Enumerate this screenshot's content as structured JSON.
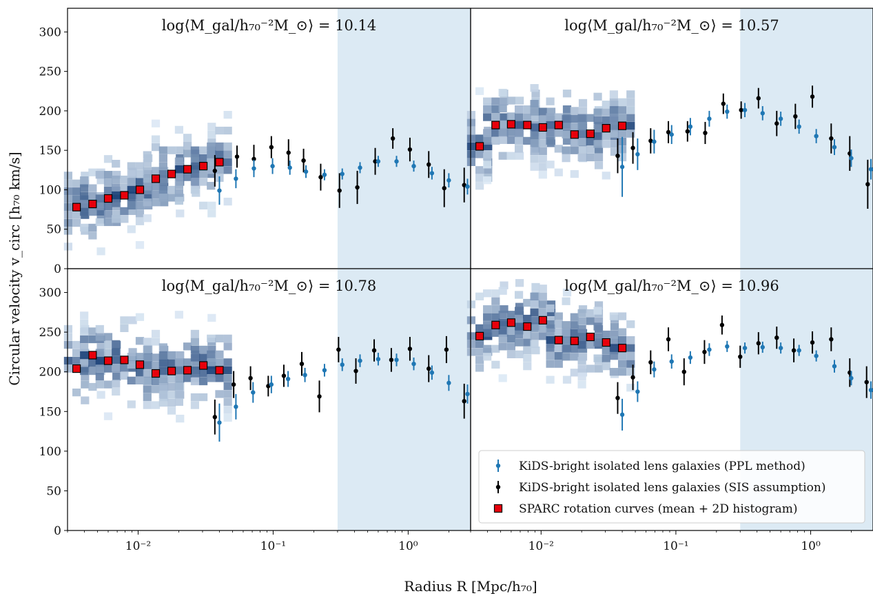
{
  "figure": {
    "ylabel": "Circular velocity v_circ [h₇₀ km/s]",
    "xlabel": "Radius R [Mpc/h₇₀]",
    "x_tick_labels": [
      "10⁻²",
      "10⁻¹",
      "10⁰"
    ],
    "y_tick_labels": [
      "0",
      "50",
      "100",
      "150",
      "200",
      "250",
      "300"
    ]
  },
  "legend": {
    "placement": "lower-right of bottom-right panel",
    "entries": [
      {
        "label": "KiDS-bright isolated lens galaxies (PPL method)",
        "color": "#1f77b4",
        "marker": "point-errorbar"
      },
      {
        "label": "KiDS-bright isolated lens galaxies (SIS assumption)",
        "color": "#000000",
        "marker": "point-errorbar"
      },
      {
        "label": "SPARC rotation curves (mean + 2D histogram)",
        "color": "#e8000b",
        "marker": "square"
      }
    ]
  },
  "colors": {
    "ppl": "#1f77b4",
    "sis": "#000000",
    "sparc_fill": "#e8000b",
    "shade": "#dceaf4",
    "hist_light": "#deebf7",
    "hist_dark": "#08306b"
  },
  "chart_data": [
    {
      "type": "scatter",
      "title": "log⟨M_gal/h₇₀⁻²M_⊙⟩ = 10.14",
      "xscale": "log",
      "xlim": [
        0.003,
        2.9
      ],
      "ylim": [
        0,
        330
      ],
      "shaded_x_range": [
        0.3,
        2.9
      ],
      "series": [
        {
          "name": "KiDS-bright isolated lens galaxies (SIS assumption)",
          "x": [
            0.037,
            0.054,
            0.072,
            0.097,
            0.13,
            0.168,
            0.225,
            0.31,
            0.42,
            0.57,
            0.77,
            1.03,
            1.42,
            1.85,
            2.6
          ],
          "y": [
            124,
            142,
            139,
            154,
            147,
            137,
            116,
            99,
            103,
            136,
            165,
            151,
            132,
            102,
            106
          ],
          "err": [
            20,
            14,
            18,
            14,
            17,
            15,
            17,
            22,
            21,
            17,
            13,
            15,
            17,
            24,
            22
          ]
        },
        {
          "name": "KiDS-bright isolated lens galaxies (PPL method)",
          "x": [
            0.04,
            0.053,
            0.072,
            0.099,
            0.133,
            0.175,
            0.24,
            0.325,
            0.44,
            0.6,
            0.82,
            1.1,
            1.5,
            2.0,
            2.75
          ],
          "y": [
            99,
            114,
            127,
            130,
            128,
            123,
            119,
            120,
            128,
            136,
            136,
            130,
            121,
            112,
            104
          ],
          "err": [
            18,
            12,
            11,
            10,
            9,
            8,
            7,
            7,
            7,
            7,
            7,
            7,
            8,
            9,
            10
          ]
        },
        {
          "name": "SPARC rotation curves (mean + 2D histogram)",
          "x": [
            0.0035,
            0.0046,
            0.006,
            0.0079,
            0.0103,
            0.0135,
            0.0177,
            0.0232,
            0.0304,
            0.04
          ],
          "y": [
            78,
            82,
            89,
            93,
            100,
            114,
            120,
            126,
            130,
            135
          ]
        }
      ]
    },
    {
      "type": "scatter",
      "title": "log⟨M_gal/h₇₀⁻²M_⊙⟩ = 10.57",
      "xscale": "log",
      "xlim": [
        0.003,
        2.9
      ],
      "ylim": [
        0,
        330
      ],
      "shaded_x_range": [
        0.3,
        2.9
      ],
      "series": [
        {
          "name": "KiDS-bright isolated lens galaxies (SIS assumption)",
          "x": [
            0.037,
            0.048,
            0.065,
            0.088,
            0.122,
            0.165,
            0.225,
            0.305,
            0.41,
            0.56,
            0.77,
            1.03,
            1.42,
            1.95,
            2.65
          ],
          "y": [
            143,
            153,
            162,
            173,
            174,
            172,
            209,
            201,
            216,
            184,
            193,
            218,
            165,
            146,
            107
          ],
          "err": [
            22,
            20,
            16,
            14,
            13,
            14,
            13,
            11,
            13,
            16,
            16,
            14,
            19,
            22,
            31
          ]
        },
        {
          "name": "KiDS-bright isolated lens galaxies (PPL method)",
          "x": [
            0.04,
            0.052,
            0.069,
            0.093,
            0.128,
            0.177,
            0.24,
            0.325,
            0.44,
            0.6,
            0.82,
            1.1,
            1.5,
            2.0,
            2.8
          ],
          "y": [
            129,
            145,
            161,
            170,
            180,
            190,
            199,
            201,
            197,
            190,
            180,
            168,
            154,
            140,
            126
          ],
          "err": [
            38,
            20,
            15,
            12,
            11,
            10,
            9,
            9,
            9,
            9,
            9,
            9,
            10,
            11,
            13
          ]
        },
        {
          "name": "SPARC rotation curves (mean + 2D histogram)",
          "x": [
            0.0035,
            0.0046,
            0.006,
            0.0079,
            0.0103,
            0.0135,
            0.0177,
            0.0232,
            0.0304,
            0.04
          ],
          "y": [
            155,
            182,
            183,
            182,
            179,
            182,
            170,
            171,
            178,
            181
          ]
        }
      ]
    },
    {
      "type": "scatter",
      "title": "log⟨M_gal/h₇₀⁻²M_⊙⟩ = 10.78",
      "xscale": "log",
      "xlim": [
        0.003,
        2.9
      ],
      "ylim": [
        0,
        330
      ],
      "shaded_x_range": [
        0.3,
        2.9
      ],
      "series": [
        {
          "name": "KiDS-bright isolated lens galaxies (SIS assumption)",
          "x": [
            0.037,
            0.051,
            0.068,
            0.092,
            0.12,
            0.163,
            0.22,
            0.305,
            0.41,
            0.56,
            0.75,
            1.03,
            1.42,
            1.92,
            2.6
          ],
          "y": [
            143,
            184,
            192,
            182,
            195,
            210,
            169,
            228,
            201,
            227,
            215,
            229,
            204,
            228,
            163
          ],
          "err": [
            22,
            17,
            15,
            13,
            14,
            15,
            20,
            16,
            16,
            14,
            15,
            15,
            17,
            17,
            22
          ]
        },
        {
          "name": "KiDS-bright isolated lens galaxies (PPL method)",
          "x": [
            0.04,
            0.053,
            0.071,
            0.097,
            0.129,
            0.172,
            0.24,
            0.325,
            0.44,
            0.6,
            0.82,
            1.1,
            1.5,
            2.0,
            2.75
          ],
          "y": [
            136,
            156,
            174,
            184,
            191,
            196,
            202,
            209,
            214,
            216,
            215,
            210,
            199,
            186,
            172
          ],
          "err": [
            24,
            16,
            13,
            11,
            10,
            9,
            8,
            8,
            8,
            8,
            8,
            8,
            9,
            10,
            12
          ]
        },
        {
          "name": "SPARC rotation curves (mean + 2D histogram)",
          "x": [
            0.0035,
            0.0046,
            0.006,
            0.0079,
            0.0103,
            0.0135,
            0.0177,
            0.0232,
            0.0304,
            0.04
          ],
          "y": [
            204,
            221,
            214,
            215,
            209,
            198,
            201,
            202,
            208,
            202
          ]
        }
      ]
    },
    {
      "type": "scatter",
      "title": "log⟨M_gal/h₇₀⁻²M_⊙⟩ = 10.96",
      "xscale": "log",
      "xlim": [
        0.003,
        2.9
      ],
      "ylim": [
        0,
        330
      ],
      "shaded_x_range": [
        0.3,
        2.9
      ],
      "series": [
        {
          "name": "KiDS-bright isolated lens galaxies (SIS assumption)",
          "x": [
            0.037,
            0.048,
            0.065,
            0.088,
            0.115,
            0.163,
            0.22,
            0.3,
            0.41,
            0.56,
            0.75,
            1.03,
            1.42,
            1.95,
            2.6
          ],
          "y": [
            167,
            193,
            212,
            241,
            200,
            225,
            259,
            219,
            236,
            243,
            227,
            237,
            241,
            199,
            187
          ],
          "err": [
            20,
            16,
            15,
            15,
            17,
            15,
            12,
            14,
            14,
            14,
            15,
            14,
            15,
            18,
            20
          ]
        },
        {
          "name": "KiDS-bright isolated lens galaxies (PPL method)",
          "x": [
            0.04,
            0.052,
            0.069,
            0.093,
            0.128,
            0.177,
            0.24,
            0.325,
            0.44,
            0.6,
            0.82,
            1.1,
            1.5,
            2.0,
            2.8
          ],
          "y": [
            146,
            175,
            203,
            213,
            218,
            228,
            232,
            230,
            231,
            230,
            227,
            220,
            207,
            192,
            177
          ],
          "err": [
            20,
            13,
            10,
            9,
            8,
            8,
            7,
            7,
            7,
            7,
            7,
            7,
            8,
            9,
            11
          ]
        },
        {
          "name": "SPARC rotation curves (mean + 2D histogram)",
          "x": [
            0.0035,
            0.0046,
            0.006,
            0.0079,
            0.0103,
            0.0135,
            0.0177,
            0.0232,
            0.0304,
            0.04
          ],
          "y": [
            245,
            259,
            262,
            257,
            265,
            240,
            239,
            244,
            237,
            230
          ]
        }
      ]
    }
  ]
}
